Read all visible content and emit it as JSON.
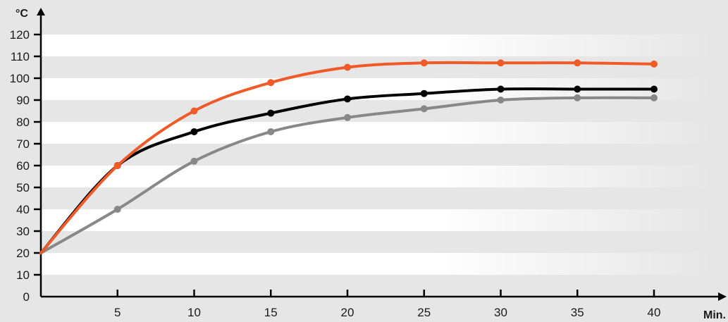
{
  "chart_data": {
    "type": "line",
    "ylabel": "°C",
    "xlabel": "Min.",
    "xlim": [
      0,
      40
    ],
    "ylim": [
      0,
      120
    ],
    "x_ticks": [
      5,
      10,
      15,
      20,
      25,
      30,
      35,
      40
    ],
    "y_ticks": [
      0,
      10,
      20,
      30,
      40,
      50,
      60,
      70,
      80,
      90,
      100,
      110,
      120
    ],
    "grid": "horizontal bands",
    "colors": {
      "background": "#e6e6e6",
      "band_light": "#ffffff",
      "axis": "#000000"
    },
    "series": [
      {
        "color": "#f05a28",
        "x": [
          0,
          5,
          10,
          15,
          20,
          25,
          30,
          35,
          40
        ],
        "y": [
          20,
          60,
          85,
          98,
          105,
          107,
          107,
          107,
          106.5
        ]
      },
      {
        "color": "#000000",
        "x": [
          0,
          5,
          10,
          15,
          20,
          25,
          30,
          35,
          40
        ],
        "y": [
          20,
          60,
          75.5,
          84,
          90.5,
          93,
          95,
          95,
          95
        ]
      },
      {
        "color": "#888888",
        "x": [
          0,
          5,
          10,
          15,
          20,
          25,
          30,
          35,
          40
        ],
        "y": [
          20,
          40,
          62,
          75.5,
          82,
          86,
          90,
          91,
          91
        ]
      }
    ]
  }
}
